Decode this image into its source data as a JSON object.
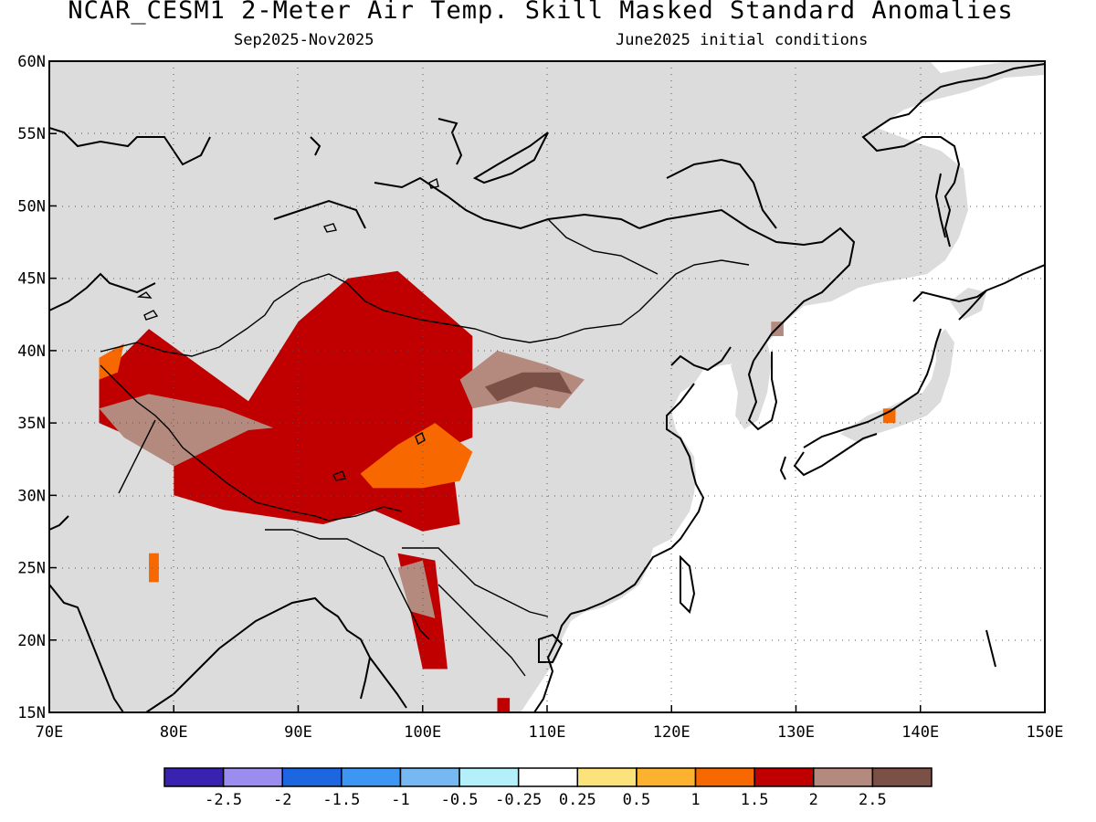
{
  "header": {
    "title": "NCAR_CESM1 2-Meter Air Temp. Skill Masked Standard Anomalies",
    "period": "Sep2025-Nov2025",
    "init": "June2025 initial conditions"
  },
  "map": {
    "lon_range": [
      70,
      150
    ],
    "lat_range": [
      15,
      60
    ],
    "lon_ticks": [
      "70E",
      "80E",
      "90E",
      "100E",
      "110E",
      "120E",
      "130E",
      "140E",
      "150E"
    ],
    "lat_ticks": [
      "15N",
      "20N",
      "25N",
      "30N",
      "35N",
      "40N",
      "45N",
      "50N",
      "55N",
      "60N"
    ],
    "colors": {
      "land_masked": "#dcdcdc",
      "ocean": "#ffffff",
      "pos_1_1_5": "#f76800",
      "pos_1_5_2": "#c00000",
      "pos_2_2_5": "#b38a7d",
      "pos_gt_2_5": "#7b5047"
    },
    "anomaly_regions": [
      {
        "name": "central-asia-tarim",
        "category": "1.5-2",
        "lons": [
          74,
          78,
          82,
          86,
          90,
          94,
          98,
          104,
          104,
          98,
          92,
          88,
          86,
          82,
          78,
          74
        ],
        "lats": [
          38,
          41.5,
          39,
          36.5,
          42,
          45,
          45.5,
          41,
          34,
          32,
          30,
          31,
          34,
          36,
          33.5,
          35
        ]
      },
      {
        "name": "tibet-plateau-west",
        "category": "2-2.5",
        "lons": [
          74,
          78,
          84,
          90,
          88,
          84,
          80,
          76
        ],
        "lats": [
          36,
          37,
          36,
          34,
          30,
          30,
          32,
          34
        ]
      },
      {
        "name": "tibet-plateau-center",
        "category": "1.5-2",
        "lons": [
          80,
          86,
          92,
          98,
          102,
          103,
          100,
          96,
          92,
          88,
          84,
          80
        ],
        "lats": [
          32,
          34.5,
          35,
          34,
          35,
          28,
          27.5,
          29,
          28,
          28.5,
          29,
          30
        ]
      },
      {
        "name": "sichuan-high",
        "category": "1-1.5",
        "lons": [
          95,
          98,
          101,
          104,
          103,
          100,
          96
        ],
        "lats": [
          31.5,
          33.5,
          35,
          33,
          31,
          30.5,
          30.5
        ]
      },
      {
        "name": "qilian-zone",
        "category": "2-2.5",
        "lons": [
          103,
          106,
          110,
          113,
          111,
          107,
          104
        ],
        "lats": [
          38,
          40,
          39,
          38,
          36,
          36.5,
          36
        ]
      },
      {
        "name": "qilian-core",
        "category": ">2.5",
        "lons": [
          105,
          108,
          111,
          112,
          109,
          106
        ],
        "lats": [
          37.5,
          38.5,
          38.5,
          37,
          37.5,
          36.5
        ]
      },
      {
        "name": "yunnan-strip",
        "category": "1.5-2",
        "lons": [
          98,
          101,
          102,
          100,
          99
        ],
        "lats": [
          26,
          25.5,
          18,
          18,
          22
        ]
      },
      {
        "name": "yunnan-brown",
        "category": "2-2.5",
        "lons": [
          98,
          100,
          101,
          99
        ],
        "lats": [
          25,
          25.5,
          21.5,
          22
        ]
      },
      {
        "name": "pamir-orange",
        "category": "1-1.5",
        "lons": [
          74,
          76,
          75.5,
          74
        ],
        "lats": [
          39.5,
          40.5,
          38.5,
          38
        ]
      },
      {
        "name": "india-orange",
        "category": "1-1.5",
        "lons": [
          78,
          78.8,
          78.8,
          78
        ],
        "lats": [
          26,
          26,
          24,
          24
        ]
      },
      {
        "name": "japan-orange",
        "category": "1-1.5",
        "lons": [
          137,
          138,
          138,
          137
        ],
        "lats": [
          36,
          36,
          35,
          35
        ]
      },
      {
        "name": "korea-brown",
        "category": "2-2.5",
        "lons": [
          128,
          129,
          129,
          128
        ],
        "lats": [
          42,
          42,
          41,
          41
        ]
      },
      {
        "name": "vietnam-red",
        "category": "1.5-2",
        "lons": [
          106,
          107,
          107,
          106
        ],
        "lats": [
          16,
          16,
          15,
          15
        ]
      }
    ]
  },
  "colorbar": {
    "colors": [
      "#3a22b0",
      "#9b8cf0",
      "#1c66e0",
      "#3c96f2",
      "#78b8f2",
      "#b4f0fa",
      "#ffffff",
      "#fce27a",
      "#fdb22f",
      "#f76800",
      "#c00000",
      "#b38a7d",
      "#7b5047"
    ],
    "labels": [
      "-2.5",
      "-2",
      "-1.5",
      "-1",
      "-0.5",
      "-0.25",
      "0.25",
      "0.5",
      "1",
      "1.5",
      "2",
      "2.5"
    ]
  }
}
